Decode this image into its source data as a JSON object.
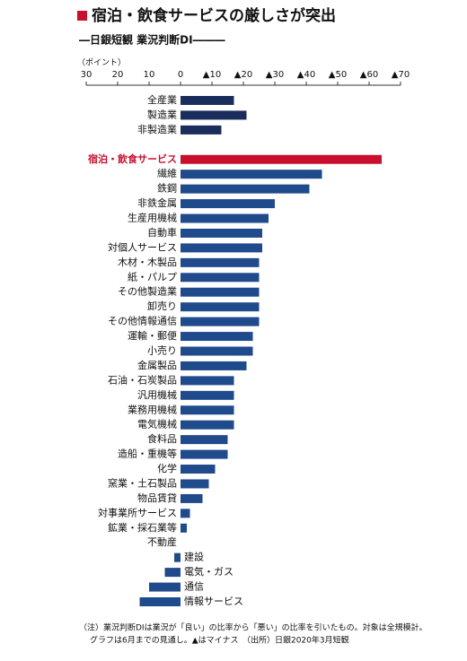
{
  "chart_data": {
    "type": "bar",
    "orientation": "horizontal",
    "title": "宿泊・飲食サービスの厳しさが突出",
    "subtitle": "―日銀短観 業況判断DI―――",
    "unit_label": "（ポイント）",
    "categories": [
      "全産業",
      "製造業",
      "非製造業",
      null,
      "宿泊・飲食サービス",
      "繊維",
      "鉄鋼",
      "非鉄金属",
      "生産用機械",
      "自動車",
      "対個人サービス",
      "木材・木製品",
      "紙・パルプ",
      "その他製造業",
      "卸売り",
      "その他情報通信",
      "運輸・郵便",
      "小売り",
      "金属製品",
      "石油・石炭製品",
      "汎用機械",
      "業務用機械",
      "電気機械",
      "食料品",
      "造船・重機等",
      "化学",
      "窯業・土石製品",
      "物品賃貸",
      "対事業所サービス",
      "鉱業・採石業等",
      "不動産",
      "建設",
      "電気・ガス",
      "通信",
      "情報サービス"
    ],
    "values": [
      -17,
      -21,
      -13,
      null,
      -64,
      -45,
      -41,
      -30,
      -28,
      -26,
      -26,
      -25,
      -25,
      -25,
      -25,
      -25,
      -23,
      -23,
      -21,
      -17,
      -17,
      -17,
      -17,
      -15,
      -15,
      -11,
      -9,
      -7,
      -3,
      -2,
      0,
      2,
      5,
      10,
      13
    ],
    "colors": [
      "#1b2d5c",
      "#1b2d5c",
      "#1b2d5c",
      null,
      "#c8102e",
      "#1f4a8c",
      "#1f4a8c",
      "#1f4a8c",
      "#1f4a8c",
      "#1f4a8c",
      "#1f4a8c",
      "#1f4a8c",
      "#1f4a8c",
      "#1f4a8c",
      "#1f4a8c",
      "#1f4a8c",
      "#1f4a8c",
      "#1f4a8c",
      "#1f4a8c",
      "#1f4a8c",
      "#1f4a8c",
      "#1f4a8c",
      "#1f4a8c",
      "#1f4a8c",
      "#1f4a8c",
      "#1f4a8c",
      "#1f4a8c",
      "#1f4a8c",
      "#1f4a8c",
      "#1f4a8c",
      "#1f4a8c",
      "#1f4a8c",
      "#1f4a8c",
      "#1f4a8c",
      "#1f4a8c"
    ],
    "highlight_color": "#c8102e",
    "xlim": [
      30,
      -70
    ],
    "xticks": [
      30,
      20,
      10,
      0,
      {
        "value": -10,
        "label": "▲10"
      },
      {
        "value": -20,
        "label": "▲20"
      },
      {
        "value": -30,
        "label": "▲30"
      },
      {
        "value": -40,
        "label": "▲40"
      },
      {
        "value": -50,
        "label": "▲50"
      },
      {
        "value": -60,
        "label": "▲60"
      },
      {
        "value": -70,
        "label": "▲70"
      }
    ],
    "notes": [
      "（注）業況判断DIは業況が「良い」の比率から「悪い」の比率を引いたもの。対象は全規模計。",
      "グラフは6月までの見通し。▲はマイナス　（出所）日銀2020年3月短観"
    ]
  }
}
